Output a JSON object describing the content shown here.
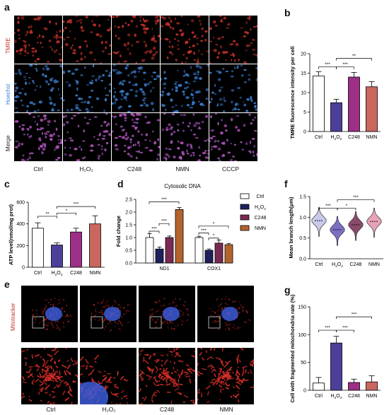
{
  "panels": {
    "a": "a",
    "b": "b",
    "c": "c",
    "d": "d",
    "e": "e",
    "f": "f",
    "g": "g"
  },
  "panel_a": {
    "rows": [
      "TMRE",
      "Hoechst",
      "Merge"
    ],
    "columns": [
      "Ctrl",
      "H₂O₂",
      "C248",
      "NMN",
      "CCCP"
    ]
  },
  "panel_e": {
    "label": "Mitotracker",
    "columns": [
      "Ctrl",
      "H₂O₂",
      "C248",
      "NMN"
    ]
  },
  "colors": {
    "ctrl": "#ffffff",
    "h2o2": "#4b3f9a",
    "c248": "#9e2f87",
    "nmn": "#c9665e",
    "d_ctrl": "#ffffff",
    "d_h2o2": "#1f1f5c",
    "d_c248": "#7a2a52",
    "d_nmn": "#b4632c",
    "f_ctrl": "#c9c9e8",
    "f_h2o2": "#7b6fc4",
    "f_c248": "#8a4b6b",
    "f_nmn": "#e7a3b6",
    "tmre": "#c8322b",
    "hoechst": "#3a7fd1",
    "merge": "#c04fb5"
  },
  "chart_data": [
    {
      "id": "b",
      "type": "bar",
      "ylabel": "TMRE fluorescence intensity per cell",
      "categories": [
        "Ctrl",
        "H2O2",
        "C248",
        "NMN"
      ],
      "values": [
        14.3,
        7.4,
        14.0,
        11.5
      ],
      "errors": [
        1.1,
        0.9,
        1.2,
        1.3
      ],
      "ylim": [
        0,
        20
      ],
      "yticks": [
        "0",
        "5",
        "10",
        "15",
        "20"
      ],
      "significance": [
        "***",
        "***",
        "**"
      ]
    },
    {
      "id": "c",
      "type": "bar",
      "ylabel": "ATP level(nmol/mg prot)",
      "categories": [
        "Ctrl",
        "H2O2",
        "C248",
        "NMN"
      ],
      "values": [
        360,
        205,
        325,
        400
      ],
      "errors": [
        50,
        20,
        35,
        75
      ],
      "ylim": [
        0,
        600
      ],
      "yticks": [
        "0",
        "200",
        "400",
        "600"
      ],
      "significance": [
        "**",
        "*",
        "***"
      ]
    },
    {
      "id": "d",
      "type": "bar",
      "title": "Cytosolic DNA",
      "ylabel": "Fold change",
      "categories": [
        "ND1",
        "COX1"
      ],
      "series": [
        {
          "name": "Ctrl",
          "values": [
            1.0,
            1.0
          ],
          "errors": [
            0.15,
            0.05
          ]
        },
        {
          "name": "H2O2",
          "values": [
            0.55,
            0.5
          ],
          "errors": [
            0.08,
            0.05
          ]
        },
        {
          "name": "C248",
          "values": [
            1.0,
            0.78
          ],
          "errors": [
            0.06,
            0.12
          ]
        },
        {
          "name": "NMN",
          "values": [
            2.1,
            0.72
          ],
          "errors": [
            0.08,
            0.05
          ]
        }
      ],
      "ylim": [
        0,
        2.5
      ],
      "yticks": [
        "0.0",
        "0.5",
        "1.0",
        "1.5",
        "2.0",
        "2.5"
      ],
      "significance": [
        "***",
        "***",
        "***",
        "***",
        "*",
        "*"
      ]
    },
    {
      "id": "f",
      "type": "violin",
      "ylabel": "Mean branch length(μm)",
      "categories": [
        "Ctrl",
        "H2O2",
        "C248",
        "NMN"
      ],
      "medians": [
        0.92,
        0.7,
        0.82,
        0.9
      ],
      "ylim": [
        0,
        1.5
      ],
      "yticks": [
        "0.0",
        "0.5",
        "1.0",
        "1.5"
      ],
      "significance": [
        "***",
        "*",
        "***"
      ]
    },
    {
      "id": "g",
      "type": "bar",
      "ylabel": "Cell with fragmented mitochondria rate (%)",
      "categories": [
        "Ctrl",
        "H2O2",
        "C248",
        "NMN"
      ],
      "values": [
        13,
        85,
        14,
        15
      ],
      "errors": [
        10,
        12,
        6,
        11
      ],
      "ylim": [
        0,
        150
      ],
      "yticks": [
        "0",
        "50",
        "100",
        "150"
      ],
      "significance": [
        "***",
        "***",
        "***"
      ]
    }
  ]
}
